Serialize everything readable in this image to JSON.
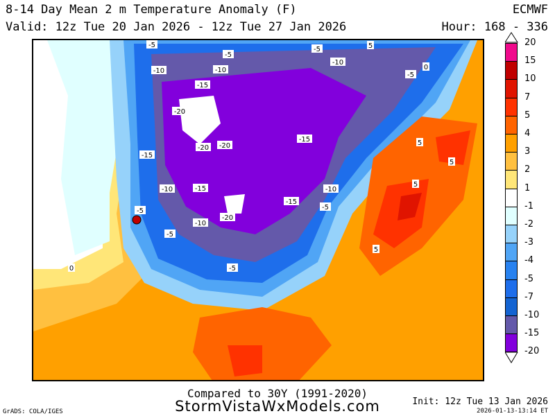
{
  "header": {
    "title": "8-14 Day Mean 2 m Temperature Anomaly (F)",
    "valid": "Valid: 12z Tue 20 Jan 2026 - 12z Tue 27 Jan 2026",
    "model": "ECMWF",
    "hour": "Hour: 168 - 336"
  },
  "colorbar": {
    "labels": [
      "20",
      "15",
      "10",
      "7",
      "5",
      "4",
      "3",
      "2",
      "1",
      "-1",
      "-2",
      "-3",
      "-4",
      "-5",
      "-7",
      "-10",
      "-15",
      "-20"
    ],
    "colors": [
      "#f00a8c",
      "#c00000",
      "#e01400",
      "#ff3200",
      "#ff6400",
      "#ffa000",
      "#ffc040",
      "#ffe678",
      "#ffffff",
      "#e0ffff",
      "#96d2fa",
      "#50a5f5",
      "#2882f0",
      "#1e6eeb",
      "#1464d2",
      "#6459aa",
      "#8200dc"
    ]
  },
  "map": {
    "contour_labels": [
      "-5",
      "-5",
      "-5",
      "5",
      "-10",
      "-10",
      "-10",
      "-5",
      "-15",
      "-20",
      "-20",
      "-20",
      "-15",
      "-15",
      "5",
      "5",
      "-10",
      "-15",
      "-10",
      "5",
      "-5",
      "-10",
      "-20",
      "-15",
      "-5",
      "-5",
      "5",
      "0",
      "-5",
      "0"
    ]
  },
  "footer": {
    "compared": "Compared to 30Y (1991-2020)",
    "site": "StormVistaWxModels.com",
    "init": "Init: 12z Tue 13 Jan 2026",
    "timestamp": "2026-01-13-13:14 ET",
    "grads": "GrADS: COLA/IGES"
  }
}
